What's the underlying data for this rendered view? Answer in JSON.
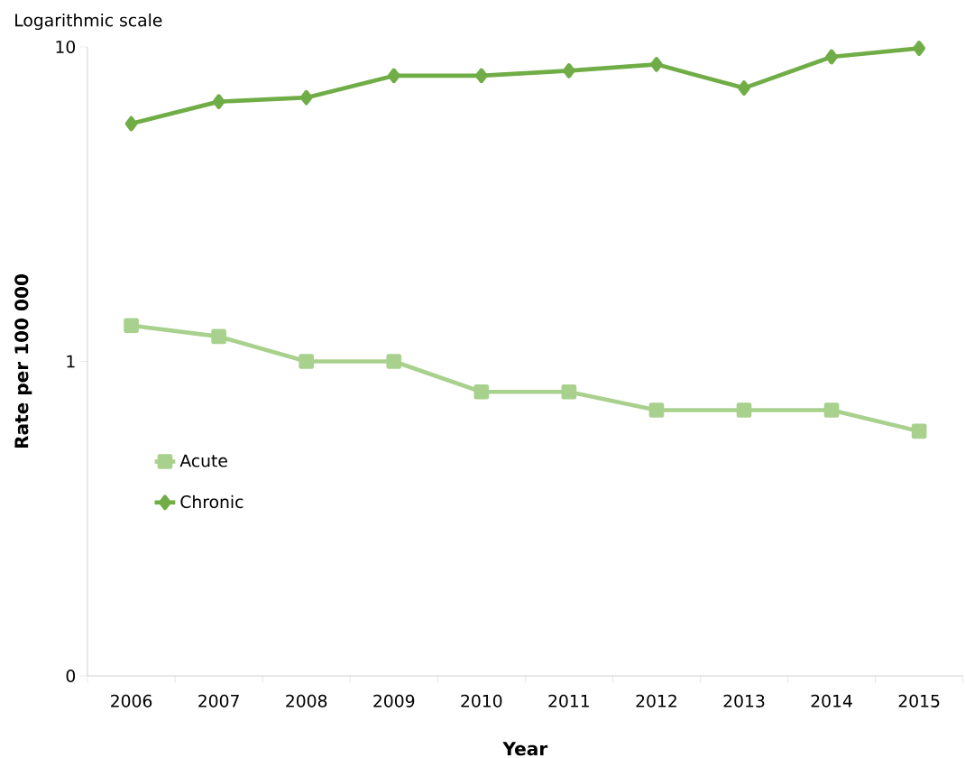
{
  "chart_data": {
    "type": "line",
    "xlabel": "Year",
    "ylabel": "Rate per 100 000",
    "annotations": [
      "Logarithmic scale"
    ],
    "categories": [
      "2006",
      "2007",
      "2008",
      "2009",
      "2010",
      "2011",
      "2012",
      "2013",
      "2014",
      "2015"
    ],
    "series": [
      {
        "name": "Acute",
        "color": "#a9d18e",
        "marker": "square",
        "values": [
          1.3,
          1.2,
          1.0,
          1.0,
          0.8,
          0.8,
          0.7,
          0.7,
          0.7,
          0.6
        ]
      },
      {
        "name": "Chronic",
        "color": "#70ad47",
        "marker": "diamond",
        "values": [
          5.7,
          6.7,
          6.9,
          8.1,
          8.1,
          8.4,
          8.8,
          7.4,
          9.3,
          9.9
        ]
      }
    ],
    "log": "y",
    "ylim": [
      0.1,
      10
    ],
    "yticks": [
      {
        "value": 0.1,
        "label": "0"
      },
      1,
      10
    ],
    "grid": false,
    "legend": "left",
    "line_style": "solid"
  }
}
